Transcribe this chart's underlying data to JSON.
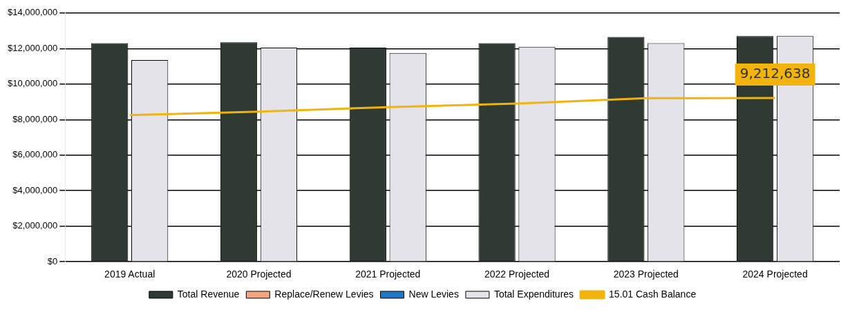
{
  "chart_data": {
    "type": "bar",
    "categories": [
      "2019 Actual",
      "2020 Projected",
      "2021 Projected",
      "2022 Projected",
      "2023 Projected",
      "2024 Projected"
    ],
    "ylim": [
      0,
      14000000
    ],
    "yticks": [
      {
        "value": 0,
        "label": "$0"
      },
      {
        "value": 2000000,
        "label": "$2,000,000"
      },
      {
        "value": 4000000,
        "label": "$4,000,000"
      },
      {
        "value": 6000000,
        "label": "$6,000,000"
      },
      {
        "value": 8000000,
        "label": "$8,000,000"
      },
      {
        "value": 10000000,
        "label": "$10,000,000"
      },
      {
        "value": 12000000,
        "label": "$12,000,000"
      },
      {
        "value": 14000000,
        "label": "$14,000,000"
      }
    ],
    "grid": "y",
    "legend": "bottom",
    "series": [
      {
        "name": "Total Revenue",
        "color": "#2f3a33",
        "values": [
          12300000,
          12350000,
          12050000,
          12300000,
          12650000,
          12700000
        ]
      },
      {
        "name": "Replace/Renew Levies",
        "color": "#f4a582",
        "values": [
          null,
          null,
          null,
          null,
          null,
          null
        ]
      },
      {
        "name": "New Levies",
        "color": "#1f77c4",
        "values": [
          null,
          null,
          null,
          null,
          null,
          null
        ]
      },
      {
        "name": "Total Expenditures",
        "color": "#e4e3ea",
        "values": [
          11350000,
          12050000,
          11750000,
          12100000,
          12300000,
          12700000
        ]
      },
      {
        "name": "15.01 Cash Balance",
        "type": "line",
        "color": "#f2b30f",
        "marker": "none",
        "values": [
          8250000,
          8450000,
          8700000,
          8900000,
          9200000,
          9212638
        ],
        "value_labels": [
          null,
          null,
          null,
          null,
          null,
          "9,212,638"
        ]
      }
    ]
  }
}
